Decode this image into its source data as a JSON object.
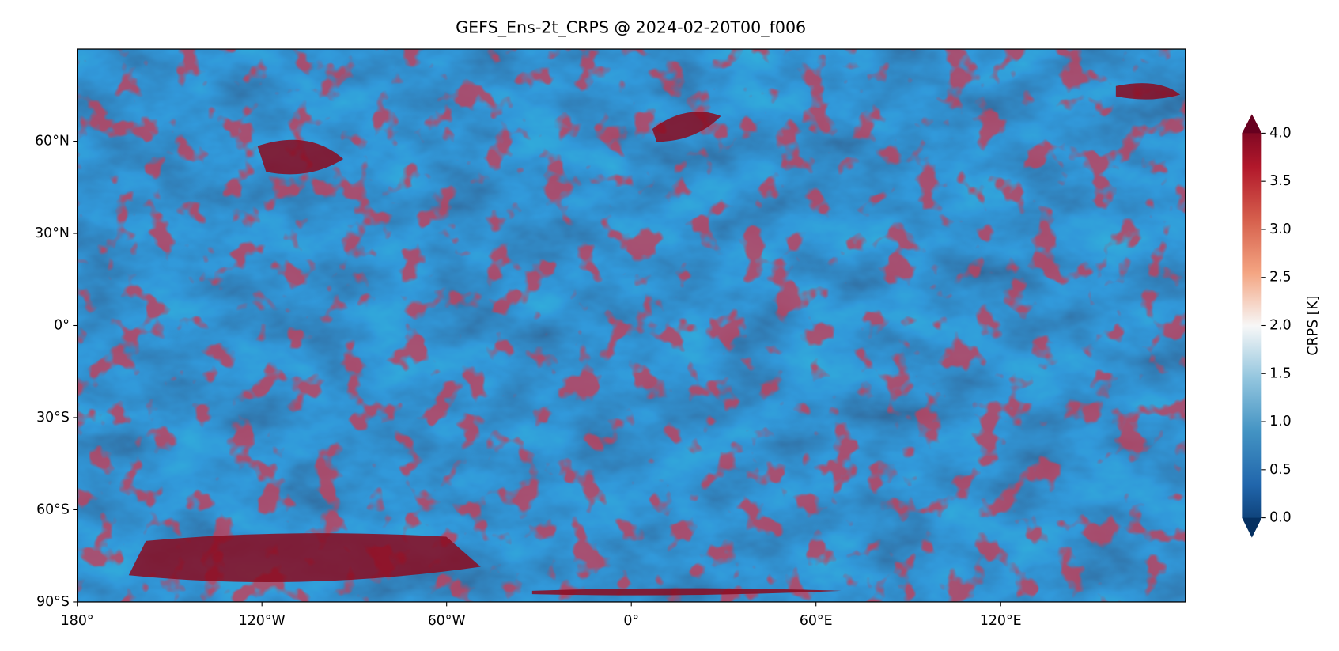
{
  "chart_data": {
    "type": "map",
    "title": "GEFS_Ens-2t_CRPS @ 2024-02-20T00_f006",
    "xlim": [
      -180,
      180
    ],
    "ylim": [
      -90,
      90
    ],
    "xticks": [
      {
        "value": -180,
        "label": "180°"
      },
      {
        "value": -120,
        "label": "120°W"
      },
      {
        "value": -60,
        "label": "60°W"
      },
      {
        "value": 0,
        "label": "0°"
      },
      {
        "value": 60,
        "label": "60°E"
      },
      {
        "value": 120,
        "label": "120°E"
      }
    ],
    "yticks": [
      {
        "value": -90,
        "label": "90°S"
      },
      {
        "value": -60,
        "label": "60°S"
      },
      {
        "value": -30,
        "label": "30°S"
      },
      {
        "value": 0,
        "label": "0°"
      },
      {
        "value": 30,
        "label": "30°N"
      },
      {
        "value": 60,
        "label": "60°N"
      }
    ],
    "colorbar": {
      "label": "CRPS [K]",
      "lim": [
        0,
        4
      ],
      "ticks": [
        {
          "value": 0,
          "label": "0.0"
        },
        0.5,
        {
          "value": 1,
          "label": "1.0"
        },
        1.5,
        {
          "value": 2,
          "label": "2.0"
        },
        2.5,
        {
          "value": 3,
          "label": "3.0"
        },
        3.5,
        {
          "value": 4,
          "label": "4.0"
        }
      ],
      "colors": [
        "#053061",
        "#2166ac",
        "#4393c3",
        "#92c5de",
        "#f7f7f7",
        "#f4a582",
        "#d6604d",
        "#b2182b",
        "#67001f"
      ]
    }
  }
}
